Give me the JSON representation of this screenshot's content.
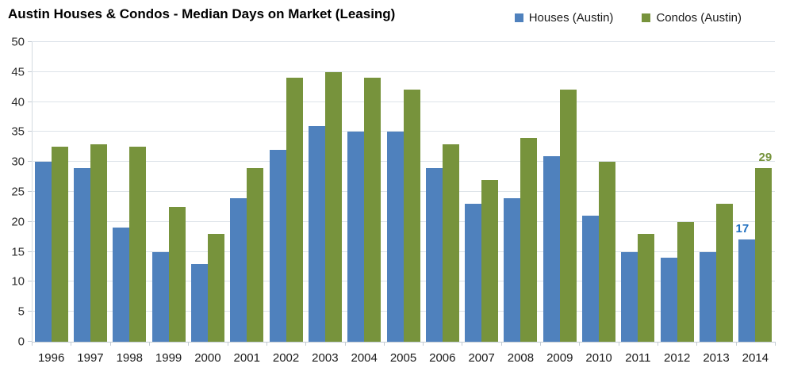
{
  "chart_data": {
    "type": "bar",
    "title": "Austin Houses & Condos - Median Days on Market (Leasing)",
    "categories": [
      "1996",
      "1997",
      "1998",
      "1999",
      "2000",
      "2001",
      "2002",
      "2003",
      "2004",
      "2005",
      "2006",
      "2007",
      "2008",
      "2009",
      "2010",
      "2011",
      "2012",
      "2013",
      "2014"
    ],
    "series": [
      {
        "name": "Houses (Austin)",
        "color": "#4F81BD",
        "values": [
          30,
          29,
          19,
          15,
          13,
          24,
          32,
          36,
          35,
          35,
          29,
          23,
          24,
          31,
          21,
          15,
          14,
          15,
          17
        ]
      },
      {
        "name": "Condos (Austin)",
        "color": "#77933C",
        "values": [
          32.5,
          33,
          32.5,
          22.5,
          18,
          29,
          44,
          45,
          44,
          42,
          33,
          27,
          34,
          42,
          30,
          18,
          20,
          23,
          29
        ]
      }
    ],
    "xlabel": "",
    "ylabel": "",
    "ylim": [
      0,
      50
    ],
    "ytick_step": 5,
    "grid": true,
    "legend_position": "top-right",
    "annotations": [
      {
        "category": "2014",
        "series": "Houses (Austin)",
        "text": "17",
        "color": "#1F6FBF",
        "dx": -6
      },
      {
        "category": "2014",
        "series": "Condos (Austin)",
        "text": "29",
        "color": "#76933C",
        "dx": 2
      }
    ]
  },
  "colors": {
    "background": "#FFFFFF",
    "gridline": "#DDE3E9",
    "axis": "#C4CCD4",
    "houses_bar": "#4F81BD",
    "condos_bar": "#77933C",
    "houses_label": "#1F6FBF",
    "condos_label": "#76933C"
  }
}
